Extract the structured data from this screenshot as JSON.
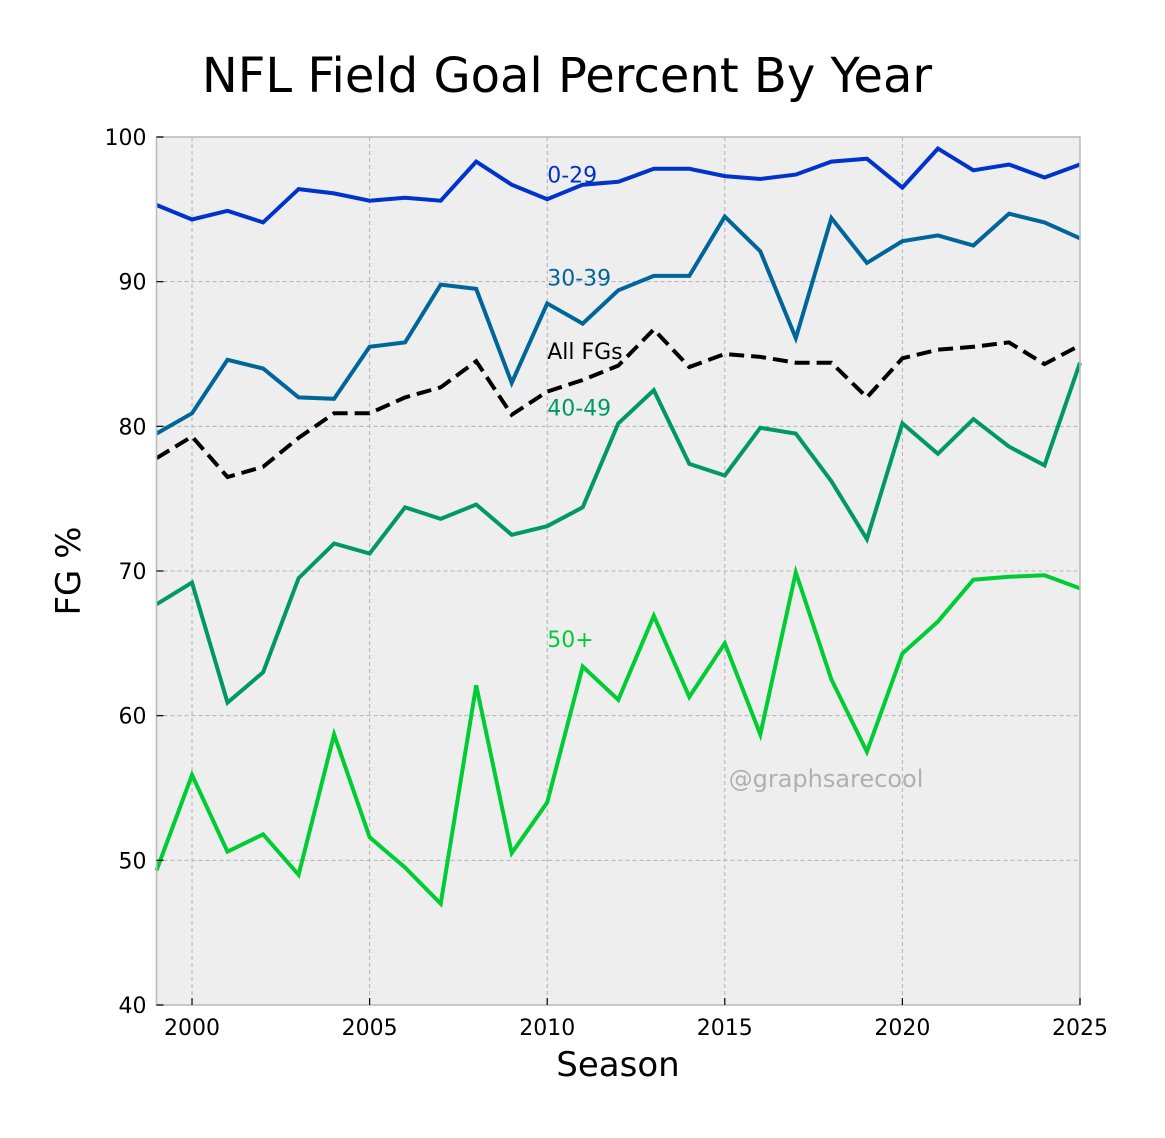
{
  "chart_data": {
    "type": "line",
    "title": "NFL Field Goal Percent By Year",
    "xlabel": "Season",
    "ylabel": "FG %",
    "xlim": [
      1999,
      2025
    ],
    "ylim": [
      40,
      100
    ],
    "xticks": [
      2000,
      2005,
      2010,
      2015,
      2020,
      2025
    ],
    "yticks": [
      40,
      50,
      60,
      70,
      80,
      90,
      100
    ],
    "grid": true,
    "legend": "inline labels at 2010",
    "watermark": "@graphsarecool",
    "x": [
      1999,
      2000,
      2001,
      2002,
      2003,
      2004,
      2005,
      2006,
      2007,
      2008,
      2009,
      2010,
      2011,
      2012,
      2013,
      2014,
      2015,
      2016,
      2017,
      2018,
      2019,
      2020,
      2021,
      2022,
      2023,
      2024,
      2025
    ],
    "series": [
      {
        "name": "0-29",
        "color": "#0033cc",
        "dashed": false,
        "label_x": 2010,
        "label_y": 97.4,
        "values": [
          95.3,
          94.3,
          94.9,
          94.1,
          96.4,
          96.1,
          95.6,
          95.8,
          95.6,
          98.3,
          96.7,
          95.7,
          96.7,
          96.9,
          97.8,
          97.8,
          97.3,
          97.1,
          97.4,
          98.3,
          98.5,
          96.5,
          99.2,
          97.7,
          98.1,
          97.2,
          98.1
        ]
      },
      {
        "name": "30-39",
        "color": "#006699",
        "dashed": false,
        "label_x": 2010,
        "label_y": 90.3,
        "values": [
          79.5,
          80.9,
          84.6,
          84.0,
          82.0,
          81.9,
          85.5,
          85.8,
          89.8,
          89.5,
          83.0,
          88.5,
          87.1,
          89.4,
          90.4,
          90.4,
          94.5,
          92.1,
          86.1,
          94.4,
          91.3,
          92.8,
          93.2,
          92.5,
          94.7,
          94.1,
          93.0
        ]
      },
      {
        "name": "All FGs",
        "color": "#000000",
        "dashed": true,
        "label_x": 2010,
        "label_y": 85.2,
        "values": [
          77.8,
          79.3,
          76.5,
          77.2,
          79.2,
          80.9,
          80.9,
          82.0,
          82.7,
          84.5,
          80.8,
          82.4,
          83.2,
          84.2,
          86.7,
          84.1,
          85.0,
          84.8,
          84.4,
          84.4,
          82.0,
          84.7,
          85.3,
          85.5,
          85.8,
          84.3,
          85.6
        ]
      },
      {
        "name": "40-49",
        "color": "#009966",
        "dashed": false,
        "label_x": 2010,
        "label_y": 81.3,
        "values": [
          67.7,
          69.2,
          60.9,
          63.0,
          69.5,
          71.9,
          71.2,
          74.4,
          73.6,
          74.6,
          72.5,
          73.1,
          74.4,
          80.2,
          82.5,
          77.4,
          76.6,
          79.9,
          79.5,
          76.2,
          72.2,
          80.2,
          78.1,
          80.5,
          78.6,
          77.3,
          84.4
        ]
      },
      {
        "name": "50+",
        "color": "#00cc33",
        "dashed": false,
        "label_x": 2010,
        "label_y": 65.3,
        "values": [
          49.3,
          55.9,
          50.6,
          51.8,
          49.0,
          58.7,
          51.6,
          49.5,
          47.0,
          62.1,
          50.5,
          54.0,
          63.4,
          61.1,
          66.9,
          61.3,
          65.0,
          58.7,
          69.9,
          62.5,
          57.5,
          64.3,
          66.5,
          69.4,
          69.6,
          69.7,
          68.8
        ]
      }
    ]
  }
}
